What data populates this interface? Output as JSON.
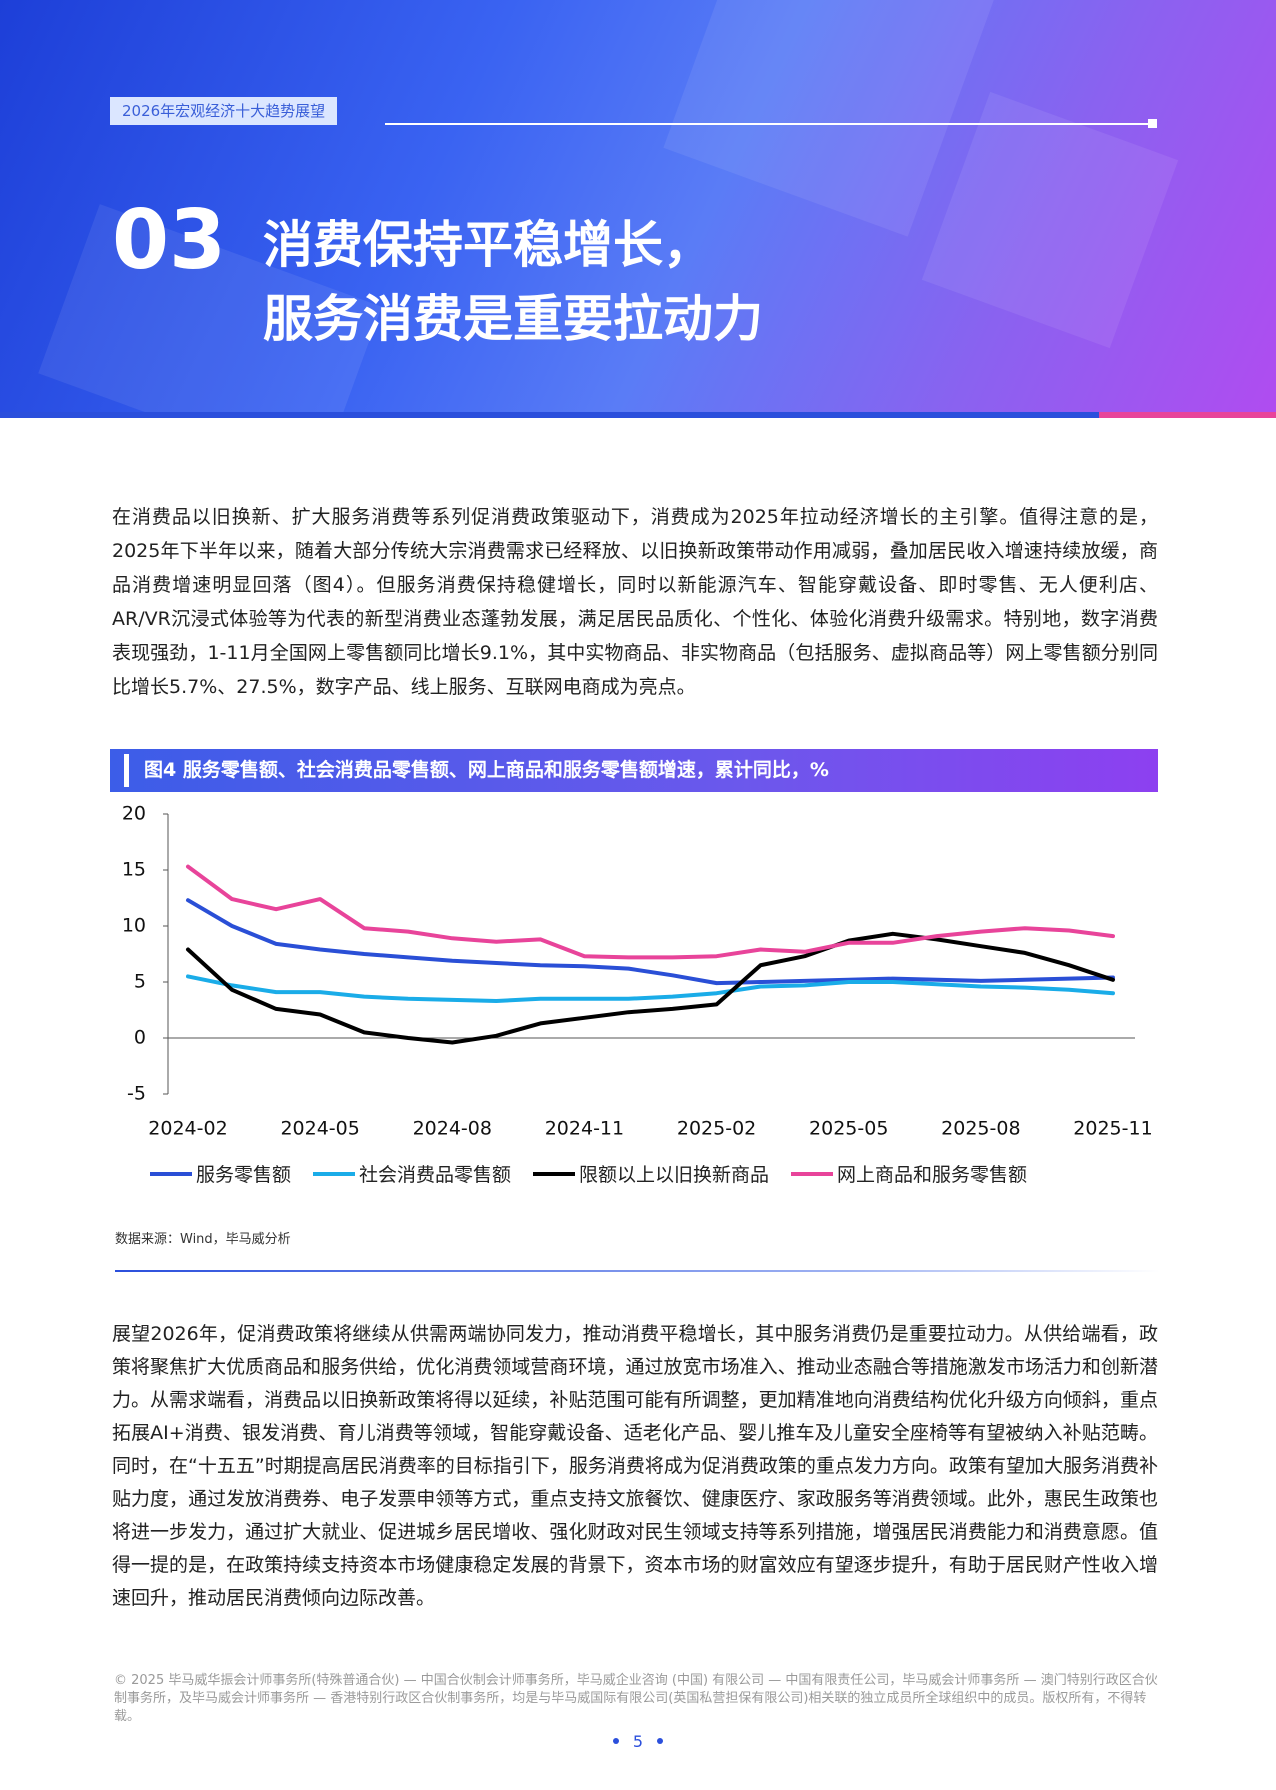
{
  "header": {
    "tag": "2026年宏观经济十大趋势展望",
    "number": "03",
    "title_line1": "消费保持平稳增长，",
    "title_line2": "服务消费是重要拉动力"
  },
  "paragraphs": [
    "在消费品以旧换新、扩大服务消费等系列促消费政策驱动下，消费成为2025年拉动经济增长的主引擎。值得注意的是，2025年下半年以来，随着大部分传统大宗消费需求已经释放、以旧换新政策带动作用减弱，叠加居民收入增速持续放缓，商品消费增速明显回落（图4）。但服务消费保持稳健增长，同时以新能源汽车、智能穿戴设备、即时零售、无人便利店、AR/VR沉浸式体验等为代表的新型消费业态蓬勃发展，满足居民品质化、个性化、体验化消费升级需求。特别地，数字消费表现强劲，1-11月全国网上零售额同比增长9.1%，其中实物商品、非实物商品（包括服务、虚拟商品等）网上零售额分别同比增长5.7%、27.5%，数字产品、线上服务、互联网电商成为亮点。",
    "展望2026年，促消费政策将继续从供需两端协同发力，推动消费平稳增长，其中服务消费仍是重要拉动力。从供给端看，政策将聚焦扩大优质商品和服务供给，优化消费领域营商环境，通过放宽市场准入、推动业态融合等措施激发市场活力和创新潜力。从需求端看，消费品以旧换新政策将得以延续，补贴范围可能有所调整，更加精准地向消费结构优化升级方向倾斜，重点拓展AI+消费、银发消费、育儿消费等领域，智能穿戴设备、适老化产品、婴儿推车及儿童安全座椅等有望被纳入补贴范畴。同时，在“十五五”时期提高居民消费率的目标指引下，服务消费将成为促消费政策的重点发力方向。政策有望加大服务消费补贴力度，通过发放消费券、电子发票申领等方式，重点支持文旅餐饮、健康医疗、家政服务等消费领域。此外，惠民生政策也将进一步发力，通过扩大就业、促进城乡居民增收、强化财政对民生领域支持等系列措施，增强居民消费能力和消费意愿。值得一提的是，在政策持续支持资本市场健康稳定发展的背景下，资本市场的财富效应有望逐步提升，有助于居民财产性收入增速回升，推动居民消费倾向边际改善。"
  ],
  "chart_data": {
    "type": "line",
    "title": "图4 服务零售额、社会消费品零售额、网上商品和服务零售额增速，累计同比，%",
    "categories": [
      "2024-02",
      null,
      null,
      "2024-05",
      null,
      null,
      "2024-08",
      null,
      null,
      "2024-11",
      null,
      null,
      "2025-02",
      null,
      null,
      "2025-05",
      null,
      null,
      "2025-08",
      null,
      null,
      "2025-11"
    ],
    "series": [
      {
        "name": "服务零售额",
        "color": "#2a4fd6",
        "values": [
          12.3,
          10,
          8.4,
          7.9,
          7.5,
          7.2,
          6.9,
          6.7,
          6.5,
          6.4,
          6.2,
          5.6,
          4.9,
          5.0,
          5.1,
          5.2,
          5.3,
          5.2,
          5.1,
          5.2,
          5.3,
          5.4
        ]
      },
      {
        "name": "社会消费品零售额",
        "color": "#1aace8",
        "values": [
          5.5,
          4.7,
          4.1,
          4.1,
          3.7,
          3.5,
          3.4,
          3.3,
          3.5,
          3.5,
          3.5,
          3.7,
          4.0,
          4.6,
          4.7,
          5.0,
          5.0,
          4.8,
          4.6,
          4.5,
          4.3,
          4.0
        ]
      },
      {
        "name": "限额以上以旧换新商品",
        "color": "#000000",
        "values": [
          7.9,
          4.3,
          2.6,
          2.1,
          0.5,
          0,
          -0.4,
          0.2,
          1.3,
          1.8,
          2.3,
          2.6,
          3.0,
          6.5,
          7.3,
          8.7,
          9.3,
          8.8,
          8.2,
          7.6,
          6.5,
          5.2
        ]
      },
      {
        "name": "网上商品和服务零售额",
        "color": "#e8449a",
        "values": [
          15.3,
          12.4,
          11.5,
          12.4,
          9.8,
          9.5,
          8.9,
          8.6,
          8.8,
          7.3,
          7.2,
          7.2,
          7.3,
          7.9,
          7.7,
          8.5,
          8.5,
          9.1,
          9.5,
          9.8,
          9.6,
          9.1
        ]
      }
    ],
    "ylim": [
      -5,
      20
    ],
    "yticks": [
      -5,
      0,
      5,
      10,
      15,
      20
    ],
    "grid": false
  },
  "source": "数据来源：Wind，毕马威分析",
  "footer": "© 2025 毕马威华振会计师事务所(特殊普通合伙) — 中国合伙制会计师事务所，毕马威企业咨询 (中国) 有限公司 — 中国有限责任公司，毕马威会计师事务所 — 澳门特别行政区合伙制事务所，及毕马威会计师事务所 — 香港特别行政区合伙制事务所，均是与毕马威国际有限公司(英国私营担保有限公司)相关联的独立成员所全球组织中的成员。版权所有，不得转载。",
  "page_number": "5"
}
